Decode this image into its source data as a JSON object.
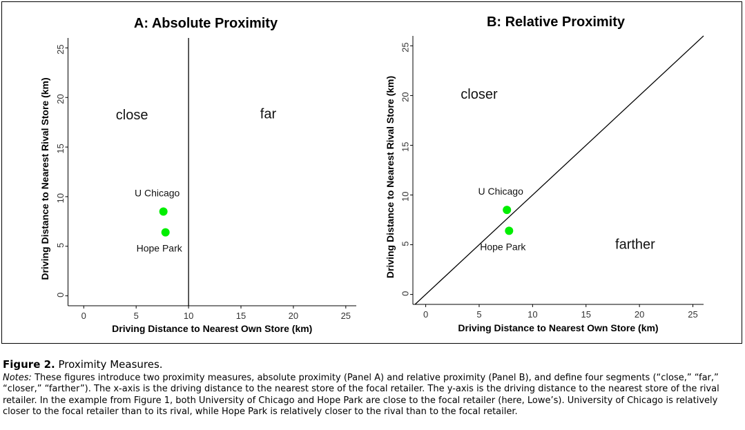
{
  "chart_data": [
    {
      "type": "scatter",
      "title": "A: Absolute Proximity",
      "xlabel": "Driving Distance to Nearest Own Store (km)",
      "ylabel": "Driving Distance to Nearest Rival Store (km)",
      "xlim": [
        -1.5,
        26
      ],
      "ylim": [
        -1,
        26
      ],
      "xticks": [
        0,
        5,
        10,
        15,
        20,
        25
      ],
      "yticks": [
        0,
        5,
        10,
        15,
        20,
        25
      ],
      "grid": false,
      "points": [
        {
          "name": "U Chicago",
          "x": 7.6,
          "y": 8.5,
          "label_pos": "above"
        },
        {
          "name": "Hope Park",
          "x": 7.8,
          "y": 6.4,
          "label_pos": "below"
        }
      ],
      "point_color": "#00ee00",
      "reference_line": {
        "type": "vertical",
        "x": 10
      },
      "region_labels": [
        {
          "text": "close",
          "x": 4.6,
          "y": 17.8
        },
        {
          "text": "far",
          "x": 17.6,
          "y": 17.9
        }
      ]
    },
    {
      "type": "scatter",
      "title": "B: Relative Proximity",
      "xlabel": "Driving Distance to Nearest Own Store (km)",
      "ylabel": "Driving Distance to Nearest Rival Store (km)",
      "xlim": [
        -1.2,
        26
      ],
      "ylim": [
        -1,
        26
      ],
      "xticks": [
        0,
        5,
        10,
        15,
        20,
        25
      ],
      "yticks": [
        0,
        5,
        10,
        15,
        20,
        25
      ],
      "grid": false,
      "points": [
        {
          "name": "U Chicago",
          "x": 7.6,
          "y": 8.5,
          "label_pos": "above"
        },
        {
          "name": "Hope Park",
          "x": 7.8,
          "y": 6.4,
          "label_pos": "below"
        }
      ],
      "point_color": "#00ee00",
      "reference_line": {
        "type": "diagonal",
        "from": [
          -1,
          -1
        ],
        "to": [
          26,
          26
        ]
      },
      "region_labels": [
        {
          "text": "closer",
          "x": 5,
          "y": 19.7
        },
        {
          "text": "farther",
          "x": 19.6,
          "y": 4.6
        }
      ]
    }
  ],
  "caption": {
    "figure_label": "Figure 2.",
    "title": "Proximity Measures.",
    "notes_label": "Notes:",
    "notes_text": "These figures introduce two proximity measures, absolute proximity (Panel A) and relative proximity (Panel B), and define four segments (“close,” “far,” “closer,” “farther”). The x-axis is the driving distance to the nearest store of the focal retailer. The y-axis is the driving distance to the nearest store of the rival retailer. In the example from Figure 1, both University of Chicago and Hope Park are close to the focal retailer (here, Lowe’s). University of Chicago is relatively closer to the focal retailer than to its rival, while Hope Park is relatively closer to the rival than to the focal retailer."
  }
}
